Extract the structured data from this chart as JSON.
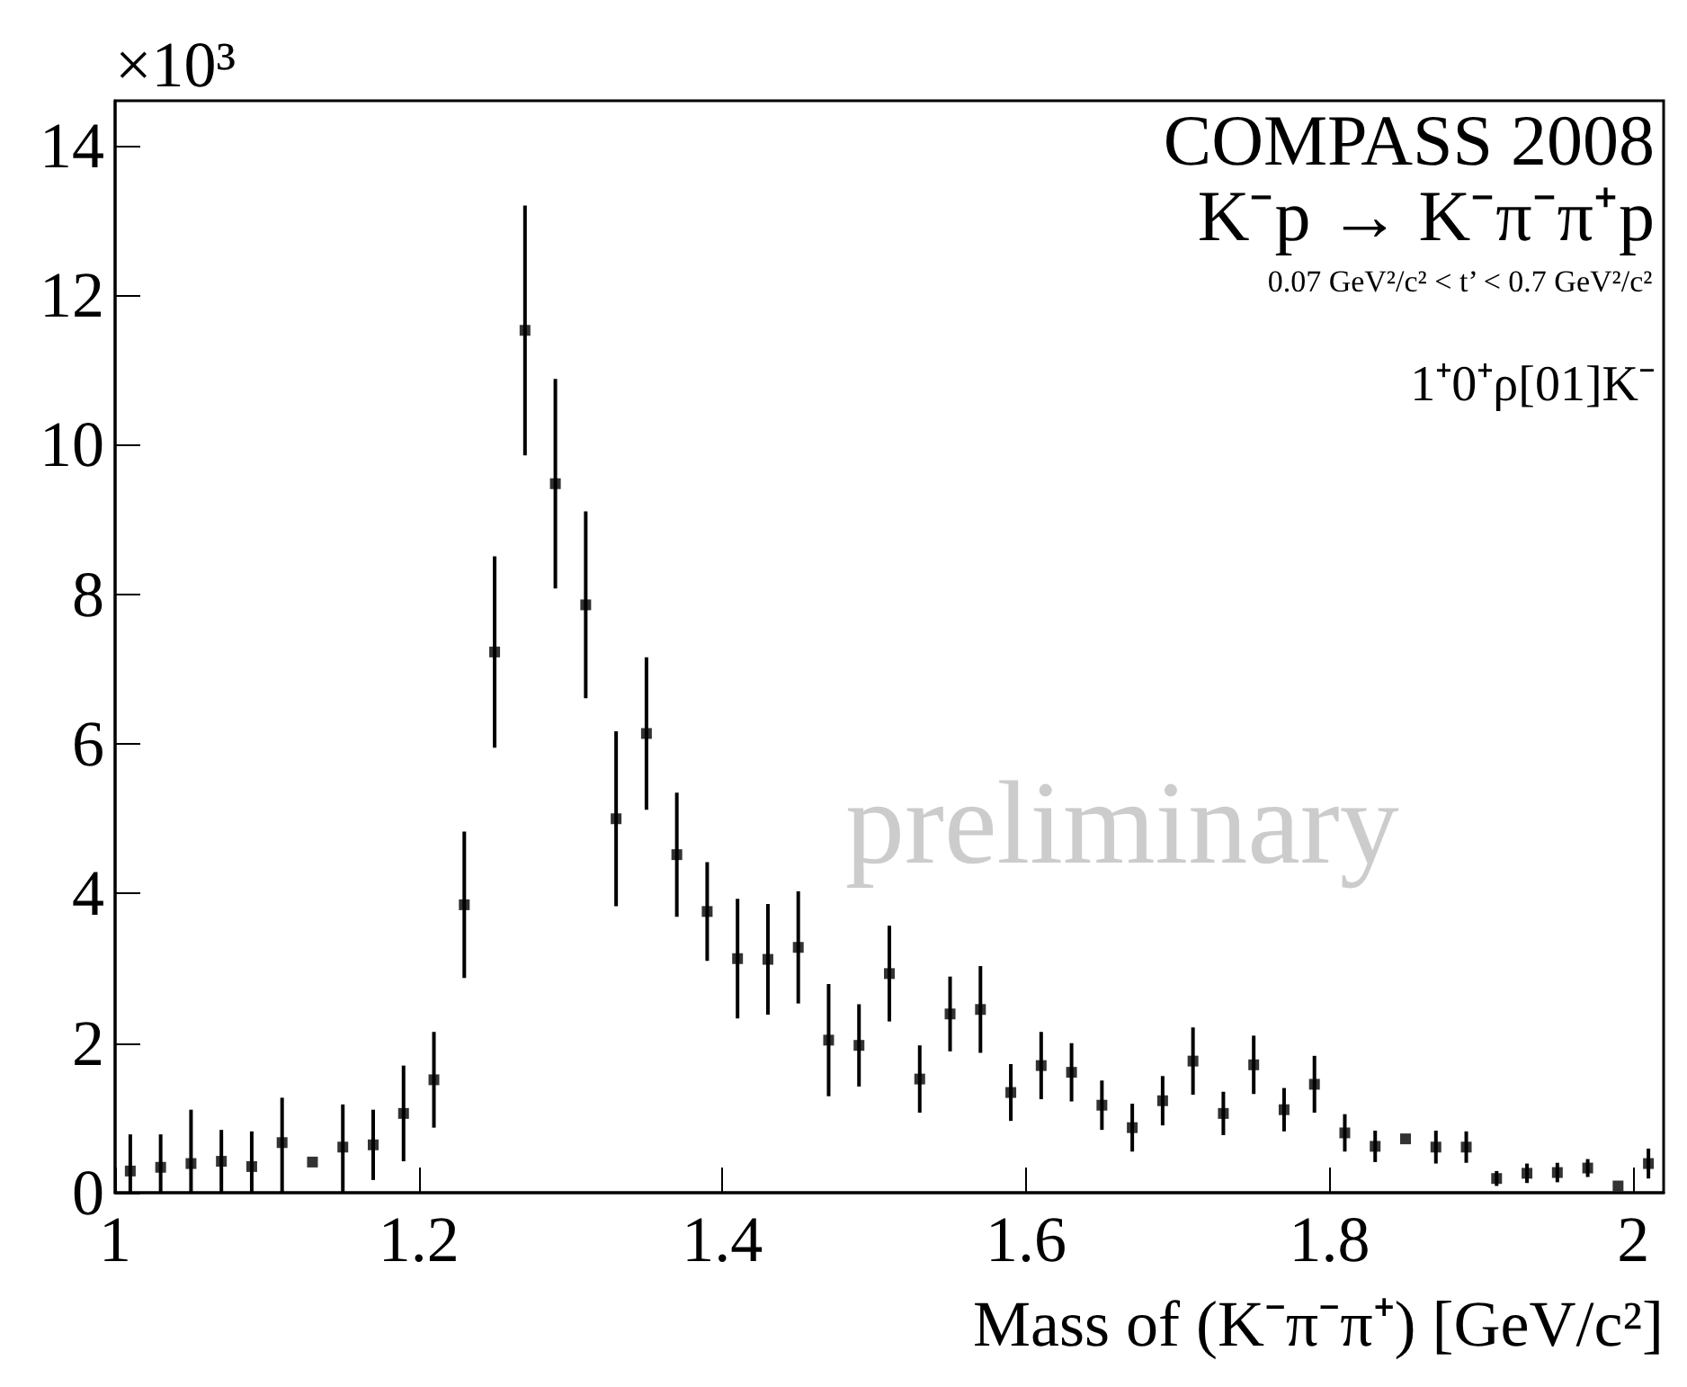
{
  "chart_data": {
    "type": "scatter",
    "xlabel": "Mass of (K⁻π⁻π⁺) [GeV/c²]",
    "ylabel": "×10³",
    "x": [
      1.01,
      1.03,
      1.05,
      1.07,
      1.09,
      1.11,
      1.13,
      1.15,
      1.17,
      1.19,
      1.21,
      1.23,
      1.25,
      1.27,
      1.29,
      1.31,
      1.33,
      1.35,
      1.37,
      1.39,
      1.41,
      1.43,
      1.45,
      1.47,
      1.49,
      1.51,
      1.53,
      1.55,
      1.57,
      1.59,
      1.61,
      1.63,
      1.65,
      1.67,
      1.69,
      1.71,
      1.73,
      1.75,
      1.77,
      1.79,
      1.81,
      1.83,
      1.85,
      1.87,
      1.89,
      1.91,
      1.93,
      1.95,
      1.97,
      1.99,
      2.01
    ],
    "series": [
      {
        "color": "#000000",
        "values": [
          0.29,
          0.34,
          0.39,
          0.42,
          0.35,
          0.67,
          0.41,
          0.61,
          0.64,
          1.06,
          1.51,
          3.85,
          7.23,
          11.53,
          9.48,
          7.86,
          5.0,
          6.14,
          4.52,
          3.76,
          3.13,
          3.12,
          3.28,
          2.04,
          1.97,
          2.93,
          1.52,
          2.39,
          2.45,
          1.34,
          1.7,
          1.61,
          1.17,
          0.87,
          1.23,
          1.76,
          1.06,
          1.71,
          1.11,
          1.45,
          0.8,
          0.62,
          0.72,
          0.61,
          0.61,
          0.19,
          0.26,
          0.27,
          0.33,
          0.09,
          0.39
        ],
        "errors": [
          [
            0,
            0.78
          ],
          [
            0,
            0.78
          ],
          [
            0,
            1.11
          ],
          [
            0,
            0.84
          ],
          [
            0,
            0.82
          ],
          [
            0,
            1.27
          ],
          null,
          [
            0,
            1.18
          ],
          0.47,
          0.64,
          0.64,
          0.98,
          1.28,
          1.67,
          1.4,
          1.25,
          1.17,
          1.02,
          0.83,
          0.66,
          0.8,
          0.74,
          0.75,
          0.75,
          0.55,
          0.64,
          0.45,
          0.5,
          0.58,
          0.38,
          0.45,
          0.39,
          0.33,
          0.32,
          0.33,
          0.45,
          0.29,
          0.39,
          0.29,
          0.38,
          0.25,
          0.21,
          null,
          0.22,
          0.21,
          0.1,
          0.13,
          0.13,
          0.12,
          null,
          0.2
        ]
      }
    ],
    "xlim": [
      1,
      2.02
    ],
    "xticks": [
      1,
      1.2,
      1.4,
      1.6,
      1.8,
      2
    ],
    "ylim": [
      0,
      14.6
    ],
    "yticks": [
      0,
      2,
      4,
      6,
      8,
      10,
      12,
      14
    ],
    "marker": "square",
    "grid": false,
    "annotations": [
      "COMPASS 2008",
      "K⁻p → K⁻π⁻π⁺p",
      "0.07 GeV²/c² < t’ < 0.7 GeV²/c²",
      "1⁺0⁺ρ[01]K⁻",
      "preliminary"
    ]
  }
}
